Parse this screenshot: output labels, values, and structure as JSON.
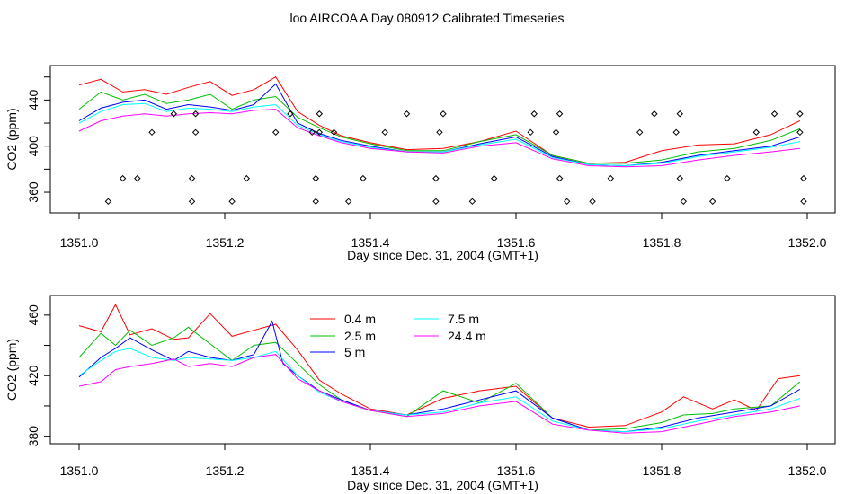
{
  "figure_title": "loo AIRCOA A  Day 080912  Calibrated Timeseries",
  "chart_data": [
    {
      "type": "line",
      "panel": "top",
      "xlabel": "Day since Dec. 31, 2004 (GMT+1)",
      "ylabel": "CO2 (ppm)",
      "xlim": [
        1351.0,
        1352.0
      ],
      "ylim": [
        346,
        466
      ],
      "xticks": [
        1351.0,
        1351.2,
        1351.4,
        1351.6,
        1351.8,
        1352.0
      ],
      "xtick_labels": [
        "1351.0",
        "1351.2",
        "1351.4",
        "1351.6",
        "1351.8",
        "1352.0"
      ],
      "yticks": [
        360,
        400,
        440
      ],
      "ytick_labels": [
        "360",
        "400",
        "440"
      ],
      "legend": "none",
      "series": [
        {
          "color": "#ff0000",
          "x": [
            1351.0,
            1351.03,
            1351.06,
            1351.09,
            1351.12,
            1351.15,
            1351.18,
            1351.21,
            1351.24,
            1351.27,
            1351.3,
            1351.33,
            1351.36,
            1351.4,
            1351.45,
            1351.5,
            1351.55,
            1351.6,
            1351.65,
            1351.7,
            1351.75,
            1351.8,
            1351.85,
            1351.9,
            1351.95,
            1351.99
          ],
          "y": [
            453,
            458,
            447,
            449,
            445,
            451,
            456,
            444,
            449,
            460,
            430,
            418,
            409,
            403,
            397,
            398,
            404,
            413,
            392,
            385,
            386,
            396,
            401,
            402,
            410,
            422
          ]
        },
        {
          "color": "#00c000",
          "x": [
            1351.0,
            1351.03,
            1351.06,
            1351.09,
            1351.12,
            1351.15,
            1351.18,
            1351.21,
            1351.24,
            1351.27,
            1351.3,
            1351.33,
            1351.36,
            1351.4,
            1351.45,
            1351.5,
            1351.55,
            1351.6,
            1351.65,
            1351.7,
            1351.75,
            1351.8,
            1351.85,
            1351.9,
            1351.95,
            1351.99
          ],
          "y": [
            432,
            447,
            440,
            445,
            437,
            440,
            445,
            432,
            440,
            443,
            425,
            416,
            408,
            402,
            396,
            396,
            404,
            410,
            392,
            385,
            385,
            388,
            395,
            398,
            405,
            415
          ]
        },
        {
          "color": "#0000ff",
          "x": [
            1351.0,
            1351.03,
            1351.06,
            1351.09,
            1351.12,
            1351.15,
            1351.18,
            1351.21,
            1351.24,
            1351.27,
            1351.3,
            1351.33,
            1351.36,
            1351.4,
            1351.45,
            1351.5,
            1351.55,
            1351.6,
            1351.65,
            1351.7,
            1351.75,
            1351.8,
            1351.85,
            1351.9,
            1351.95,
            1351.99
          ],
          "y": [
            422,
            433,
            438,
            440,
            432,
            436,
            434,
            431,
            436,
            454,
            420,
            411,
            405,
            400,
            395,
            395,
            402,
            408,
            391,
            384,
            383,
            386,
            392,
            396,
            400,
            408
          ]
        },
        {
          "color": "#00ffff",
          "x": [
            1351.0,
            1351.03,
            1351.06,
            1351.09,
            1351.12,
            1351.15,
            1351.18,
            1351.21,
            1351.24,
            1351.27,
            1351.3,
            1351.33,
            1351.36,
            1351.4,
            1351.45,
            1351.5,
            1351.55,
            1351.6,
            1351.65,
            1351.7,
            1351.75,
            1351.8,
            1351.85,
            1351.9,
            1351.95,
            1351.99
          ],
          "y": [
            420,
            430,
            436,
            437,
            430,
            433,
            432,
            430,
            434,
            436,
            418,
            410,
            404,
            399,
            395,
            395,
            401,
            406,
            390,
            384,
            383,
            385,
            391,
            395,
            399,
            404
          ]
        },
        {
          "color": "#ff00ff",
          "x": [
            1351.0,
            1351.03,
            1351.06,
            1351.09,
            1351.12,
            1351.15,
            1351.18,
            1351.21,
            1351.24,
            1351.27,
            1351.3,
            1351.33,
            1351.36,
            1351.4,
            1351.45,
            1351.5,
            1351.55,
            1351.6,
            1351.65,
            1351.7,
            1351.75,
            1351.8,
            1351.85,
            1351.9,
            1351.95,
            1351.99
          ],
          "y": [
            413,
            422,
            426,
            428,
            426,
            428,
            429,
            428,
            431,
            432,
            416,
            409,
            403,
            398,
            395,
            394,
            400,
            403,
            389,
            383,
            382,
            383,
            388,
            392,
            395,
            398
          ]
        },
        {
          "color": "#000000",
          "marker": "diamond",
          "line": false,
          "x": [
            1351.04,
            1351.06,
            1351.08,
            1351.1,
            1351.13,
            1351.155,
            1351.155,
            1351.16,
            1351.16,
            1351.21,
            1351.23,
            1351.27,
            1351.29,
            1351.32,
            1351.325,
            1351.325,
            1351.33,
            1351.33,
            1351.35,
            1351.37,
            1351.39,
            1351.42,
            1351.45,
            1351.49,
            1351.49,
            1351.495,
            1351.5,
            1351.54,
            1351.57,
            1351.62,
            1351.625,
            1351.655,
            1351.66,
            1351.66,
            1351.67,
            1351.705,
            1351.73,
            1351.77,
            1351.79,
            1351.82,
            1351.825,
            1351.825,
            1351.83,
            1351.87,
            1351.89,
            1351.93,
            1351.955,
            1351.99,
            1351.99,
            1351.995,
            1351.995
          ],
          "y": [
            352,
            372,
            372,
            412,
            428,
            352,
            372,
            412,
            428,
            352,
            372,
            412,
            428,
            412,
            372,
            352,
            428,
            412,
            412,
            352,
            372,
            412,
            428,
            352,
            372,
            412,
            428,
            352,
            372,
            412,
            428,
            412,
            428,
            372,
            352,
            352,
            372,
            412,
            428,
            412,
            428,
            372,
            352,
            352,
            372,
            412,
            428,
            428,
            412,
            372,
            352
          ]
        }
      ]
    },
    {
      "type": "line",
      "panel": "bottom",
      "xlabel": "Day since Dec. 31, 2004 (GMT+1)",
      "ylabel": "CO2 (ppm)",
      "xlim": [
        1351.0,
        1352.0
      ],
      "ylim": [
        378,
        470
      ],
      "xticks": [
        1351.0,
        1351.2,
        1351.4,
        1351.6,
        1351.8,
        1352.0
      ],
      "xtick_labels": [
        "1351.0",
        "1351.2",
        "1351.4",
        "1351.6",
        "1351.8",
        "1352.0"
      ],
      "yticks": [
        380,
        420,
        460
      ],
      "ytick_labels": [
        "380",
        "420",
        "460"
      ],
      "legend": "top-left",
      "series": [
        {
          "name": "0.4 m",
          "color": "#ff0000",
          "x": [
            1351.0,
            1351.03,
            1351.05,
            1351.07,
            1351.1,
            1351.13,
            1351.15,
            1351.18,
            1351.21,
            1351.24,
            1351.27,
            1351.3,
            1351.33,
            1351.36,
            1351.4,
            1351.45,
            1351.5,
            1351.55,
            1351.6,
            1351.65,
            1351.7,
            1351.75,
            1351.8,
            1351.83,
            1351.87,
            1351.9,
            1351.93,
            1351.96,
            1351.99
          ],
          "y": [
            453,
            449,
            467,
            447,
            451,
            444,
            445,
            461,
            446,
            450,
            454,
            437,
            417,
            408,
            398,
            394,
            405,
            410,
            413,
            392,
            386,
            387,
            396,
            406,
            398,
            404,
            397,
            418,
            420
          ]
        },
        {
          "name": "2.5 m",
          "color": "#00c000",
          "x": [
            1351.0,
            1351.03,
            1351.05,
            1351.07,
            1351.1,
            1351.13,
            1351.15,
            1351.18,
            1351.21,
            1351.24,
            1351.27,
            1351.3,
            1351.33,
            1351.36,
            1351.4,
            1351.45,
            1351.5,
            1351.55,
            1351.6,
            1351.65,
            1351.7,
            1351.75,
            1351.8,
            1351.83,
            1351.87,
            1351.9,
            1351.95,
            1351.99
          ],
          "y": [
            432,
            448,
            440,
            450,
            440,
            445,
            452,
            441,
            430,
            440,
            442,
            428,
            414,
            404,
            397,
            393,
            410,
            402,
            415,
            392,
            384,
            385,
            389,
            394,
            395,
            398,
            400,
            416
          ]
        },
        {
          "name": "5 m",
          "color": "#0000ff",
          "x": [
            1351.0,
            1351.03,
            1351.05,
            1351.07,
            1351.1,
            1351.13,
            1351.15,
            1351.18,
            1351.21,
            1351.24,
            1351.265,
            1351.28,
            1351.3,
            1351.33,
            1351.36,
            1351.4,
            1351.45,
            1351.5,
            1351.55,
            1351.6,
            1351.65,
            1351.7,
            1351.75,
            1351.8,
            1351.85,
            1351.9,
            1351.95,
            1351.99
          ],
          "y": [
            419,
            432,
            438,
            445,
            437,
            430,
            436,
            432,
            430,
            434,
            456,
            428,
            420,
            410,
            404,
            397,
            394,
            398,
            404,
            410,
            392,
            384,
            383,
            386,
            392,
            396,
            400,
            411
          ]
        },
        {
          "name": "7.5 m",
          "color": "#00ffff",
          "x": [
            1351.0,
            1351.03,
            1351.05,
            1351.07,
            1351.1,
            1351.13,
            1351.15,
            1351.18,
            1351.21,
            1351.24,
            1351.27,
            1351.3,
            1351.33,
            1351.36,
            1351.4,
            1351.45,
            1351.5,
            1351.55,
            1351.6,
            1351.65,
            1351.7,
            1351.75,
            1351.8,
            1351.85,
            1351.9,
            1351.95,
            1351.99
          ],
          "y": [
            420,
            430,
            436,
            438,
            432,
            430,
            432,
            431,
            430,
            432,
            436,
            420,
            409,
            403,
            397,
            394,
            396,
            402,
            406,
            390,
            384,
            383,
            385,
            390,
            394,
            398,
            405
          ]
        },
        {
          "name": "24.4 m",
          "color": "#ff00ff",
          "x": [
            1351.0,
            1351.03,
            1351.05,
            1351.07,
            1351.1,
            1351.13,
            1351.15,
            1351.18,
            1351.21,
            1351.24,
            1351.27,
            1351.3,
            1351.33,
            1351.36,
            1351.4,
            1351.45,
            1351.5,
            1351.55,
            1351.6,
            1351.65,
            1351.7,
            1351.75,
            1351.8,
            1351.85,
            1351.9,
            1351.95,
            1351.99
          ],
          "y": [
            413,
            416,
            424,
            426,
            428,
            431,
            426,
            428,
            426,
            432,
            434,
            418,
            410,
            403,
            397,
            393,
            395,
            400,
            403,
            388,
            384,
            382,
            383,
            388,
            393,
            396,
            400
          ]
        }
      ]
    }
  ]
}
